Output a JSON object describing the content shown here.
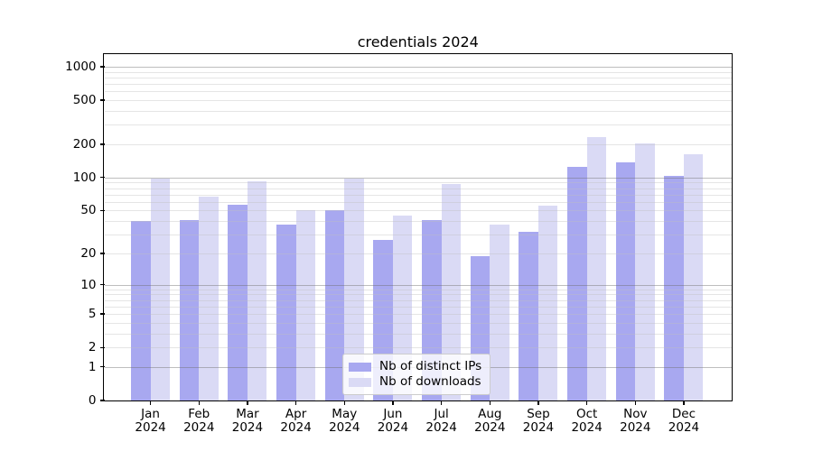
{
  "chart_data": {
    "type": "bar",
    "title": "credentials 2024",
    "categories": [
      "Jan 2024",
      "Feb 2024",
      "Mar 2024",
      "Apr 2024",
      "May 2024",
      "Jun 2024",
      "Jul 2024",
      "Aug 2024",
      "Sep 2024",
      "Oct 2024",
      "Nov 2024",
      "Dec 2024"
    ],
    "x_tick_months": [
      "Jan",
      "Feb",
      "Mar",
      "Apr",
      "May",
      "Jun",
      "Jul",
      "Aug",
      "Sep",
      "Oct",
      "Nov",
      "Dec"
    ],
    "x_tick_year": "2024",
    "series": [
      {
        "name": "Nb of distinct IPs",
        "color": "#a8a8f0",
        "values": [
          40,
          41,
          57,
          37,
          50,
          27,
          41,
          19,
          32,
          125,
          136,
          104
        ]
      },
      {
        "name": "Nb of downloads",
        "color": "#dadaf5",
        "values": [
          98,
          67,
          93,
          50,
          98,
          45,
          87,
          37,
          55,
          233,
          205,
          164
        ]
      }
    ],
    "y_axis": {
      "scale": "log1p",
      "ticks": [
        0,
        1,
        2,
        5,
        10,
        20,
        50,
        100,
        200,
        500,
        1000
      ],
      "major_grid_ticks": [
        1,
        10,
        100,
        1000
      ],
      "ylim": [
        0,
        1300
      ]
    },
    "grid": {
      "major": true,
      "minor": true,
      "legend_position": "lower center inside"
    }
  },
  "colors": {
    "bar_dark": "#a8a8f0",
    "bar_light": "#dadaf5",
    "grid_major": "rgba(110,110,110,0.45)",
    "grid_minor": "rgba(190,190,190,0.40)",
    "axis": "#000000",
    "background": "#ffffff"
  }
}
